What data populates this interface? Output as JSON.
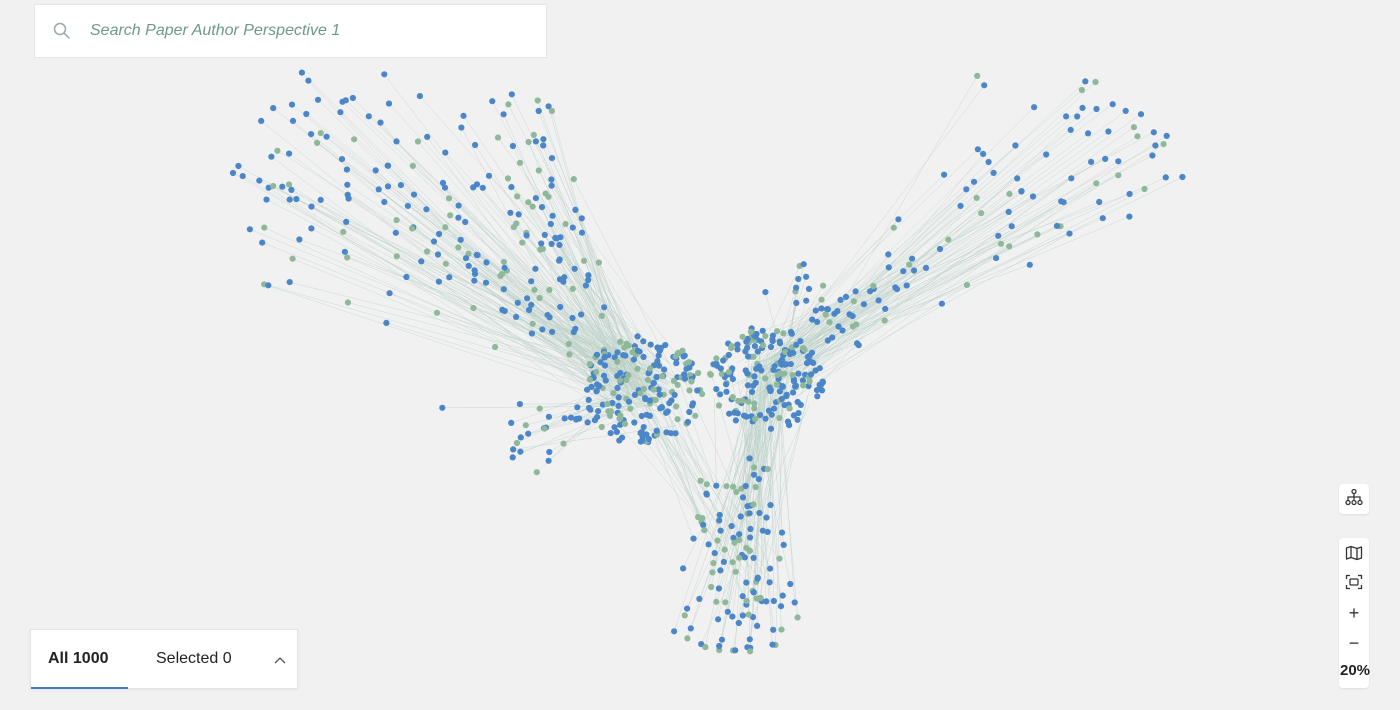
{
  "search": {
    "placeholder": "Search Paper Author Perspective 1",
    "icon": "search-icon"
  },
  "tabs": {
    "all_label": "All 1000",
    "selected_label": "Selected 0",
    "active": "all"
  },
  "toolbar": {
    "zoom_in_label": "+",
    "zoom_out_label": "−",
    "zoom_level": "20%",
    "icons": [
      "hierarchy-icon",
      "map-icon",
      "fit-view-icon",
      "plus-icon",
      "minus-icon"
    ]
  },
  "graph": {
    "total_nodes": 1000,
    "node_colors": {
      "author": "#4a86c8",
      "paper": "#8fb89b"
    },
    "edge_color": "#b9cfc6"
  },
  "colors": {
    "background": "#f1f1f1",
    "accent": "#3d7cc9",
    "placeholder_text": "#6d9a85"
  }
}
